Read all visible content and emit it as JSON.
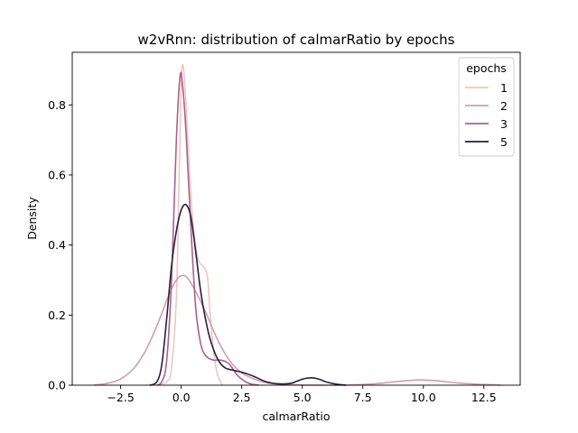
{
  "chart_data": {
    "type": "line",
    "title": "w2vRnn: distribution of calmarRatio by epochs",
    "xlabel": "calmarRatio",
    "ylabel": "Density",
    "xlim": [
      -4.5,
      14.0
    ],
    "ylim": [
      0,
      0.95
    ],
    "x_ticks": [
      -2.5,
      0.0,
      2.5,
      5.0,
      7.5,
      10.0,
      12.5
    ],
    "x_tick_labels": [
      "−2.5",
      "0.0",
      "2.5",
      "5.0",
      "7.5",
      "10.0",
      "12.5"
    ],
    "y_ticks": [
      0.0,
      0.2,
      0.4,
      0.6,
      0.8
    ],
    "y_tick_labels": [
      "0.0",
      "0.2",
      "0.4",
      "0.6",
      "0.8"
    ],
    "grid": false,
    "legend": {
      "title": "epochs",
      "placement": "top-right"
    },
    "series": [
      {
        "name": "1",
        "color": "#ebc8c2",
        "points": [
          [
            -1.0,
            0.0
          ],
          [
            -0.6,
            0.01
          ],
          [
            -0.4,
            0.05
          ],
          [
            -0.2,
            0.25
          ],
          [
            -0.1,
            0.55
          ],
          [
            0.0,
            0.86
          ],
          [
            0.05,
            0.91
          ],
          [
            0.1,
            0.9
          ],
          [
            0.2,
            0.8
          ],
          [
            0.35,
            0.6
          ],
          [
            0.5,
            0.45
          ],
          [
            0.7,
            0.36
          ],
          [
            0.9,
            0.34
          ],
          [
            1.0,
            0.33
          ],
          [
            1.1,
            0.3
          ],
          [
            1.2,
            0.2
          ],
          [
            1.35,
            0.09
          ],
          [
            1.5,
            0.03
          ],
          [
            1.7,
            0.0
          ]
        ]
      },
      {
        "name": "2",
        "color": "#d49cac",
        "points": [
          [
            -3.6,
            0.0
          ],
          [
            -3.0,
            0.006
          ],
          [
            -2.5,
            0.018
          ],
          [
            -2.0,
            0.045
          ],
          [
            -1.5,
            0.095
          ],
          [
            -1.0,
            0.17
          ],
          [
            -0.5,
            0.26
          ],
          [
            -0.2,
            0.3
          ],
          [
            0.0,
            0.312
          ],
          [
            0.2,
            0.31
          ],
          [
            0.5,
            0.28
          ],
          [
            1.0,
            0.21
          ],
          [
            1.5,
            0.13
          ],
          [
            2.0,
            0.07
          ],
          [
            2.5,
            0.035
          ],
          [
            3.0,
            0.018
          ],
          [
            3.5,
            0.007
          ],
          [
            4.0,
            0.003
          ],
          [
            5.0,
            0.0005
          ],
          [
            6.0,
            0.0
          ],
          [
            7.0,
            0.0005
          ],
          [
            8.0,
            0.004
          ],
          [
            9.0,
            0.011
          ],
          [
            9.8,
            0.015
          ],
          [
            10.5,
            0.013
          ],
          [
            11.5,
            0.006
          ],
          [
            12.5,
            0.002
          ],
          [
            13.2,
            0.0
          ]
        ]
      },
      {
        "name": "3",
        "color": "#a8628a",
        "points": [
          [
            -1.0,
            0.0
          ],
          [
            -0.8,
            0.01
          ],
          [
            -0.6,
            0.07
          ],
          [
            -0.4,
            0.3
          ],
          [
            -0.2,
            0.7
          ],
          [
            -0.05,
            0.88
          ],
          [
            0.05,
            0.86
          ],
          [
            0.2,
            0.72
          ],
          [
            0.4,
            0.45
          ],
          [
            0.6,
            0.22
          ],
          [
            0.8,
            0.12
          ],
          [
            1.0,
            0.085
          ],
          [
            1.3,
            0.072
          ],
          [
            1.6,
            0.072
          ],
          [
            1.9,
            0.065
          ],
          [
            2.1,
            0.05
          ],
          [
            2.3,
            0.03
          ],
          [
            2.6,
            0.012
          ],
          [
            2.9,
            0.003
          ],
          [
            3.2,
            0.0
          ]
        ]
      },
      {
        "name": "5",
        "color": "#2d1e3e",
        "points": [
          [
            -1.3,
            0.0
          ],
          [
            -1.0,
            0.01
          ],
          [
            -0.8,
            0.06
          ],
          [
            -0.6,
            0.19
          ],
          [
            -0.4,
            0.34
          ],
          [
            -0.2,
            0.44
          ],
          [
            0.0,
            0.5
          ],
          [
            0.2,
            0.515
          ],
          [
            0.4,
            0.48
          ],
          [
            0.6,
            0.38
          ],
          [
            0.8,
            0.27
          ],
          [
            1.0,
            0.19
          ],
          [
            1.2,
            0.13
          ],
          [
            1.5,
            0.075
          ],
          [
            1.8,
            0.05
          ],
          [
            2.2,
            0.042
          ],
          [
            2.6,
            0.035
          ],
          [
            3.0,
            0.025
          ],
          [
            3.5,
            0.01
          ],
          [
            4.0,
            0.004
          ],
          [
            4.5,
            0.005
          ],
          [
            4.8,
            0.012
          ],
          [
            5.1,
            0.019
          ],
          [
            5.4,
            0.021
          ],
          [
            5.7,
            0.017
          ],
          [
            6.0,
            0.009
          ],
          [
            6.4,
            0.003
          ],
          [
            6.8,
            0.0
          ]
        ]
      }
    ]
  }
}
